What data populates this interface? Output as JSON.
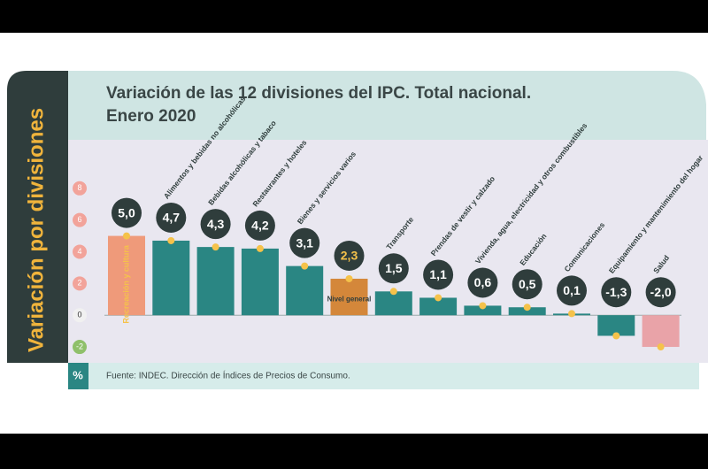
{
  "chart_data": {
    "type": "bar",
    "side_title": "Variación por divisiones",
    "title": "Variación de las 12 divisiones del IPC. Total nacional.",
    "subtitle": "Enero 2020",
    "unit_label": "%",
    "source": "Fuente: INDEC. Dirección de Índices de Precios de Consumo.",
    "categories": [
      "Recreación y cultura",
      "Alimentos y bebidas no alcohólicas",
      "Bebidas alcohólicas y tabaco",
      "Restaurantes y hoteles",
      "Bienes y servicios varios",
      "Nivel general",
      "Transporte",
      "Prendas de vestir y calzado",
      "Vivienda, agua, electricidad y otros combustibles",
      "Educación",
      "Comunicaciones",
      "Equipamiento y mantenimiento del hogar",
      "Salud"
    ],
    "values": [
      5.0,
      4.7,
      4.3,
      4.2,
      3.1,
      2.3,
      1.5,
      1.1,
      0.6,
      0.5,
      0.1,
      -1.3,
      -2.0
    ],
    "value_labels": [
      "5,0",
      "4,7",
      "4,3",
      "4,2",
      "3,1",
      "2,3",
      "1,5",
      "1,1",
      "0,6",
      "0,5",
      "0,1",
      "-1,3",
      "-2,0"
    ],
    "colors": [
      "#ef9a7a",
      "#2a8683",
      "#2a8683",
      "#2a8683",
      "#2a8683",
      "#d4873a",
      "#2a8683",
      "#2a8683",
      "#2a8683",
      "#2a8683",
      "#2a8683",
      "#2a8683",
      "#e9a3a8"
    ],
    "ylim": [
      -2.5,
      10.5
    ],
    "yticks": [
      8,
      6,
      4,
      2,
      0,
      -2
    ],
    "grid": false
  }
}
